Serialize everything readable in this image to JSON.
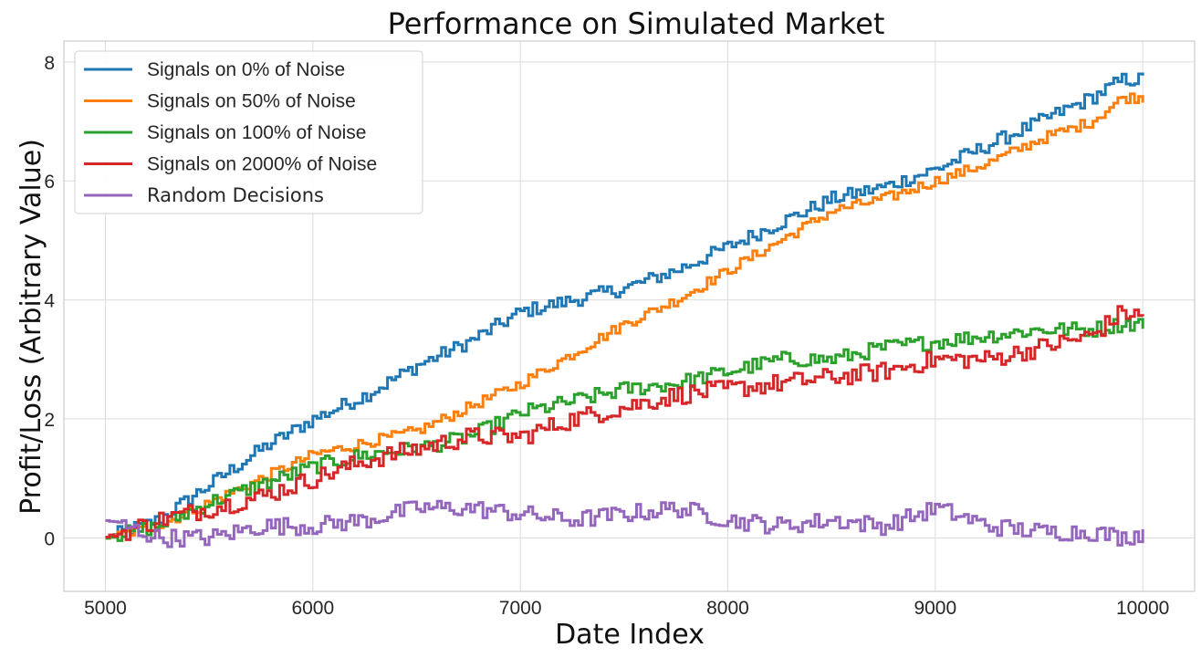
{
  "chart_data": {
    "type": "line",
    "step": true,
    "title": "Performance on Simulated Market",
    "xlabel": "Date Index",
    "ylabel": "Profit/Loss (Arbitrary Value)",
    "xlim": [
      4800,
      10250
    ],
    "ylim": [
      -0.9,
      8.35
    ],
    "xticks": [
      5000,
      6000,
      7000,
      8000,
      9000,
      10000
    ],
    "yticks": [
      0,
      2,
      4,
      6,
      8
    ],
    "grid": true,
    "legend_position": "top-left",
    "series": [
      {
        "name": "Signals on 0% of Noise",
        "color": "#1f77b4",
        "x": [
          5000,
          5250,
          5500,
          5750,
          6000,
          6250,
          6500,
          6750,
          7000,
          7250,
          7500,
          7750,
          8000,
          8250,
          8500,
          8750,
          9000,
          9250,
          9500,
          9750,
          9900,
          10000
        ],
        "y": [
          0.0,
          0.3,
          0.9,
          1.5,
          2.0,
          2.4,
          2.9,
          3.3,
          3.8,
          4.0,
          4.2,
          4.5,
          4.9,
          5.3,
          5.7,
          5.9,
          6.2,
          6.6,
          7.0,
          7.4,
          7.7,
          7.7
        ]
      },
      {
        "name": "Signals on 50% of Noise",
        "color": "#ff7f0e",
        "x": [
          5000,
          5250,
          5500,
          5750,
          6000,
          6250,
          6500,
          6750,
          7000,
          7250,
          7500,
          7750,
          8000,
          8250,
          8500,
          8750,
          9000,
          9250,
          9500,
          9750,
          9900,
          10000
        ],
        "y": [
          0.0,
          0.2,
          0.6,
          1.0,
          1.4,
          1.6,
          1.8,
          2.2,
          2.6,
          3.1,
          3.6,
          4.0,
          4.5,
          5.0,
          5.5,
          5.7,
          6.0,
          6.3,
          6.7,
          7.0,
          7.4,
          7.4
        ]
      },
      {
        "name": "Signals on 100% of Noise",
        "color": "#2ca02c",
        "x": [
          5000,
          5250,
          5500,
          5750,
          6000,
          6250,
          6500,
          6750,
          7000,
          7250,
          7500,
          7750,
          8000,
          8250,
          8500,
          8750,
          9000,
          9250,
          9500,
          9750,
          9900,
          10000
        ],
        "y": [
          0.0,
          0.2,
          0.6,
          0.9,
          1.2,
          1.4,
          1.5,
          1.7,
          2.1,
          2.3,
          2.5,
          2.6,
          2.8,
          3.0,
          3.0,
          3.2,
          3.3,
          3.4,
          3.5,
          3.5,
          3.6,
          3.6
        ]
      },
      {
        "name": "Signals on 2000% of Noise",
        "color": "#d62728",
        "x": [
          5000,
          5250,
          5500,
          5750,
          6000,
          6250,
          6500,
          6750,
          7000,
          7250,
          7500,
          7750,
          8000,
          8250,
          8500,
          8750,
          9000,
          9250,
          9500,
          9750,
          9900,
          10000
        ],
        "y": [
          0.0,
          0.3,
          0.5,
          0.7,
          1.0,
          1.3,
          1.5,
          1.7,
          1.7,
          2.0,
          2.2,
          2.4,
          2.5,
          2.6,
          2.7,
          2.8,
          3.0,
          3.0,
          3.2,
          3.4,
          3.8,
          3.7
        ]
      },
      {
        "name": "Random Decisions",
        "color": "#9467bd",
        "x": [
          5000,
          5250,
          5500,
          5750,
          6000,
          6250,
          6500,
          6750,
          7000,
          7250,
          7500,
          7750,
          8000,
          8250,
          8500,
          8750,
          9000,
          9250,
          9500,
          9750,
          9900,
          10000
        ],
        "y": [
          0.3,
          0.0,
          0.0,
          0.2,
          0.2,
          0.3,
          0.5,
          0.5,
          0.4,
          0.3,
          0.4,
          0.5,
          0.3,
          0.2,
          0.3,
          0.2,
          0.5,
          0.2,
          0.1,
          0.1,
          0.0,
          0.1
        ]
      }
    ]
  }
}
